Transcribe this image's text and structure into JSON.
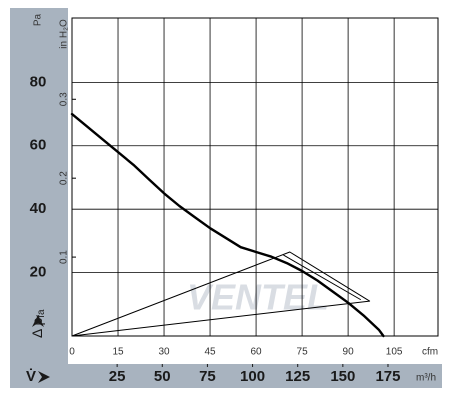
{
  "chart_data": {
    "type": "line",
    "y_unit": "Pa",
    "y2_unit": "in H₂O",
    "x_unit": "cfm",
    "x2_unit": "m³/h",
    "y_symbol": "Δ p",
    "y_symbol_subscript": "fa",
    "x_symbol": "V̇",
    "watermark": "VENTEL",
    "xlim": [
      0,
      119.3
    ],
    "xticks": [
      0,
      15,
      30,
      45,
      60,
      75,
      90,
      105
    ],
    "x2lim": [
      0,
      202.7
    ],
    "x2ticks": [
      25,
      50,
      75,
      100,
      125,
      150,
      175
    ],
    "ylim": [
      0,
      100.3
    ],
    "yticks": [
      20,
      40,
      60,
      80
    ],
    "y2lim": [
      0,
      0.403
    ],
    "y2ticks": [
      0.1,
      0.2,
      0.3
    ],
    "grid": true,
    "series": [
      {
        "color": "#000000",
        "width": 2.4,
        "x": [
          0,
          5,
          10,
          15,
          20,
          25,
          30,
          35,
          40,
          45,
          50,
          55,
          60,
          65,
          70,
          75,
          80,
          85,
          90,
          95,
          100,
          101.5
        ],
        "values": [
          70,
          66,
          62,
          58,
          54,
          49.5,
          45,
          41,
          37.5,
          34,
          31,
          28,
          26.5,
          25,
          23,
          20.5,
          17.5,
          14,
          10.5,
          6.5,
          2,
          0
        ]
      },
      {
        "color": "#000000",
        "width": 1,
        "x": [
          0,
          71,
          97,
          0
        ],
        "values": [
          0,
          26.5,
          11,
          0
        ]
      },
      {
        "color": "#000000",
        "width": 1,
        "x": [
          69,
          94
        ],
        "values": [
          25.5,
          11.5
        ]
      }
    ]
  }
}
